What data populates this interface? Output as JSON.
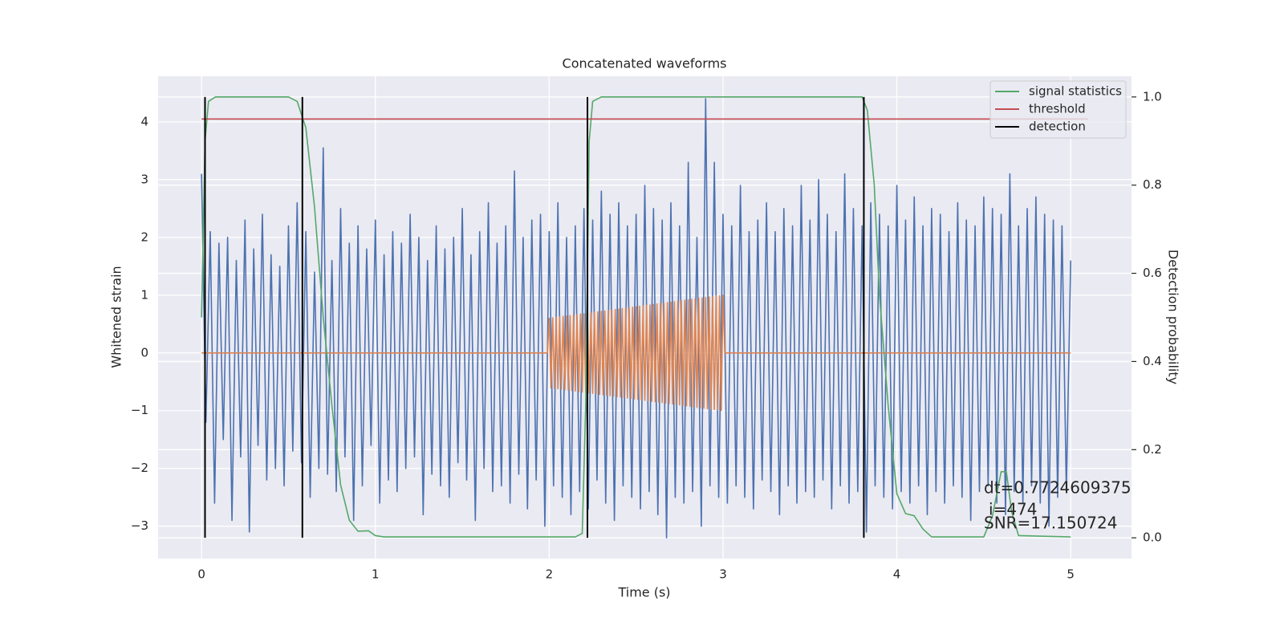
{
  "chart_data": {
    "type": "line",
    "title": "Concatenated waveforms",
    "xlabel": "Time (s)",
    "ylabel": "Whitened strain",
    "y2label": "Detection probability",
    "xlim": [
      -0.25,
      5.35
    ],
    "ylim": [
      -3.56,
      4.79
    ],
    "y2lim": [
      -0.047,
      1.047
    ],
    "xticks": [
      0,
      1,
      2,
      3,
      4,
      5
    ],
    "yticks": [
      {
        "value": -3,
        "label": "−3"
      },
      {
        "value": -2,
        "label": "−2"
      },
      {
        "value": -1,
        "label": "−1"
      },
      0,
      1,
      2,
      3,
      4
    ],
    "y2ticks": [
      {
        "value": 0,
        "label": "0.0"
      },
      {
        "value": 0.2,
        "label": "0.2"
      },
      {
        "value": 0.4,
        "label": "0.4"
      },
      {
        "value": 0.6,
        "label": "0.6"
      },
      {
        "value": 0.8,
        "label": "0.8"
      },
      {
        "value": 1,
        "label": "1.0"
      }
    ],
    "grid": true,
    "legend": "upper right",
    "background": "#eaeaf2",
    "series": [
      {
        "color": "#4c72b0",
        "axis": "y",
        "x": [
          0,
          0.025,
          0.05,
          0.075,
          0.1,
          0.125,
          0.15,
          0.175,
          0.2,
          0.225,
          0.25,
          0.275,
          0.3,
          0.325,
          0.35,
          0.375,
          0.4,
          0.425,
          0.45,
          0.475,
          0.5,
          0.525,
          0.55,
          0.575,
          0.6,
          0.625,
          0.65,
          0.675,
          0.7,
          0.725,
          0.75,
          0.775,
          0.8,
          0.825,
          0.85,
          0.875,
          0.9,
          0.925,
          0.95,
          0.975,
          1,
          1.025,
          1.05,
          1.075,
          1.1,
          1.125,
          1.15,
          1.175,
          1.2,
          1.225,
          1.25,
          1.275,
          1.3,
          1.325,
          1.35,
          1.375,
          1.4,
          1.425,
          1.45,
          1.475,
          1.5,
          1.525,
          1.55,
          1.575,
          1.6,
          1.625,
          1.65,
          1.675,
          1.7,
          1.725,
          1.75,
          1.775,
          1.8,
          1.825,
          1.85,
          1.875,
          1.9,
          1.925,
          1.95,
          1.975,
          2,
          2.025,
          2.05,
          2.075,
          2.1,
          2.125,
          2.15,
          2.175,
          2.2,
          2.225,
          2.25,
          2.275,
          2.3,
          2.325,
          2.35,
          2.375,
          2.4,
          2.425,
          2.45,
          2.475,
          2.5,
          2.525,
          2.55,
          2.575,
          2.6,
          2.625,
          2.65,
          2.675,
          2.7,
          2.725,
          2.75,
          2.775,
          2.8,
          2.825,
          2.85,
          2.875,
          2.9,
          2.925,
          2.95,
          2.975,
          3,
          3.025,
          3.05,
          3.075,
          3.1,
          3.125,
          3.15,
          3.175,
          3.2,
          3.225,
          3.25,
          3.275,
          3.3,
          3.325,
          3.35,
          3.375,
          3.4,
          3.425,
          3.45,
          3.475,
          3.5,
          3.525,
          3.55,
          3.575,
          3.6,
          3.625,
          3.65,
          3.675,
          3.7,
          3.725,
          3.75,
          3.775,
          3.8,
          3.825,
          3.85,
          3.875,
          3.9,
          3.925,
          3.95,
          3.975,
          4,
          4.025,
          4.05,
          4.075,
          4.1,
          4.125,
          4.15,
          4.175,
          4.2,
          4.225,
          4.25,
          4.275,
          4.3,
          4.325,
          4.35,
          4.375,
          4.4,
          4.425,
          4.45,
          4.475,
          4.5,
          4.525,
          4.55,
          4.575,
          4.6,
          4.625,
          4.65,
          4.675,
          4.7,
          4.725,
          4.75,
          4.775,
          4.8,
          4.825,
          4.85,
          4.875,
          4.9,
          4.925,
          4.95,
          4.975,
          5
        ],
        "values": [
          3.1,
          -1.2,
          2.1,
          -2.6,
          1.9,
          -1.5,
          2.0,
          -2.9,
          1.6,
          -1.8,
          2.3,
          -3.1,
          1.8,
          -1.6,
          2.4,
          -2.2,
          1.7,
          -2.0,
          1.5,
          -2.3,
          2.2,
          -1.7,
          2.6,
          -1.9,
          2.1,
          -2.5,
          1.4,
          -2.0,
          3.55,
          -2.1,
          1.6,
          -2.4,
          2.5,
          -1.8,
          1.9,
          -2.9,
          2.2,
          -2.3,
          1.8,
          -1.6,
          2.3,
          -2.6,
          1.7,
          -2.2,
          2.1,
          -2.4,
          1.9,
          -2.0,
          2.4,
          -1.8,
          2.0,
          -2.8,
          1.6,
          -2.1,
          2.2,
          -2.3,
          1.8,
          -2.5,
          2.0,
          -1.9,
          2.5,
          -2.2,
          1.7,
          -2.9,
          2.1,
          -2.0,
          2.6,
          -2.4,
          1.9,
          -2.3,
          2.2,
          -2.6,
          3.15,
          -2.1,
          2.0,
          -2.7,
          2.3,
          -2.2,
          2.4,
          -3.0,
          2.1,
          -2.3,
          2.6,
          -2.5,
          2.0,
          -2.8,
          2.2,
          -2.4,
          2.5,
          -2.7,
          2.3,
          -2.2,
          2.8,
          -2.6,
          2.4,
          -2.9,
          2.6,
          -2.3,
          2.2,
          -2.5,
          2.4,
          -2.7,
          2.9,
          -2.4,
          2.5,
          -2.8,
          2.3,
          -3.2,
          2.6,
          -2.5,
          2.2,
          -2.6,
          3.3,
          -2.4,
          2.0,
          -3.0,
          4.4,
          -2.3,
          3.3,
          -2.5,
          2.4,
          -2.6,
          2.2,
          -2.3,
          2.9,
          -2.5,
          2.1,
          -2.7,
          2.3,
          -2.2,
          2.6,
          -2.4,
          2.1,
          -2.8,
          2.5,
          -2.3,
          2.2,
          -2.6,
          2.9,
          -2.4,
          2.3,
          -2.5,
          3.0,
          -2.2,
          2.4,
          -2.7,
          2.1,
          -2.3,
          3.1,
          -2.6,
          2.5,
          -2.4,
          2.2,
          -3.1,
          2.6,
          -2.3,
          2.4,
          -2.5,
          2.2,
          -2.7,
          2.9,
          -2.4,
          2.3,
          -2.6,
          2.7,
          -2.3,
          2.2,
          -2.8,
          2.5,
          -2.4,
          2.4,
          -2.6,
          2.1,
          -2.3,
          2.6,
          -2.5,
          2.3,
          -2.9,
          2.2,
          -2.4,
          2.7,
          -2.3,
          2.5,
          -2.6,
          2.4,
          -2.8,
          3.1,
          -2.4,
          2.2,
          -2.6,
          2.5,
          -2.3,
          2.7,
          -2.6,
          2.4,
          -3.0,
          2.3,
          -2.5,
          2.2,
          -2.4,
          1.6
        ]
      },
      {
        "color": "#dd8452",
        "axis": "y",
        "x": [
          0,
          1.99,
          2,
          2.01,
          2.02,
          2.03,
          2.04,
          2.05,
          2.06,
          2.07,
          2.08,
          2.09,
          2.1,
          2.11,
          2.12,
          2.13,
          2.14,
          2.15,
          2.16,
          2.17,
          2.18,
          2.19,
          2.2,
          2.21,
          2.22,
          2.23,
          2.24,
          2.25,
          2.26,
          2.27,
          2.28,
          2.29,
          2.3,
          2.31,
          2.32,
          2.33,
          2.34,
          2.35,
          2.36,
          2.37,
          2.38,
          2.39,
          2.4,
          2.41,
          2.42,
          2.43,
          2.44,
          2.45,
          2.46,
          2.47,
          2.48,
          2.49,
          2.5,
          2.51,
          2.52,
          2.53,
          2.54,
          2.55,
          2.56,
          2.57,
          2.58,
          2.59,
          2.6,
          2.61,
          2.62,
          2.63,
          2.64,
          2.65,
          2.66,
          2.67,
          2.68,
          2.69,
          2.7,
          2.71,
          2.72,
          2.73,
          2.74,
          2.75,
          2.76,
          2.77,
          2.78,
          2.79,
          2.8,
          2.81,
          2.82,
          2.83,
          2.84,
          2.85,
          2.86,
          2.87,
          2.88,
          2.89,
          2.9,
          2.91,
          2.92,
          2.93,
          2.94,
          2.95,
          2.96,
          2.97,
          2.98,
          2.99,
          3,
          3.01,
          5
        ],
        "values": [
          0,
          0,
          0.6,
          -0.604,
          0.608,
          -0.612,
          0.616,
          -0.62,
          0.624,
          -0.628,
          0.632,
          -0.636,
          0.64,
          -0.644,
          0.648,
          -0.652,
          0.656,
          -0.66,
          0.664,
          -0.668,
          0.672,
          -0.676,
          0.68,
          -0.684,
          0.688,
          -0.692,
          0.696,
          -0.7,
          0.704,
          -0.708,
          0.712,
          -0.716,
          0.72,
          -0.724,
          0.728,
          -0.732,
          0.736,
          -0.74,
          0.744,
          -0.748,
          0.752,
          -0.756,
          0.76,
          -0.764,
          0.768,
          -0.772,
          0.776,
          -0.78,
          0.784,
          -0.788,
          0.792,
          -0.796,
          0.8,
          -0.804,
          0.808,
          -0.812,
          0.816,
          -0.82,
          0.824,
          -0.828,
          0.832,
          -0.836,
          0.84,
          -0.844,
          0.848,
          -0.852,
          0.856,
          -0.86,
          0.864,
          -0.868,
          0.872,
          -0.876,
          0.88,
          -0.884,
          0.888,
          -0.892,
          0.896,
          -0.9,
          0.904,
          -0.908,
          0.912,
          -0.916,
          0.92,
          -0.924,
          0.928,
          -0.932,
          0.936,
          -0.94,
          0.944,
          -0.948,
          0.952,
          -0.956,
          0.96,
          -0.964,
          0.968,
          -0.972,
          0.976,
          -0.98,
          0.984,
          -0.988,
          0.992,
          -0.996,
          1.0,
          0,
          0
        ]
      },
      {
        "name": "signal statistics",
        "color": "#55a868",
        "axis": "y2",
        "x": [
          0,
          0.02,
          0.04,
          0.08,
          0.5,
          0.55,
          0.6,
          0.65,
          0.7,
          0.75,
          0.8,
          0.85,
          0.9,
          0.96,
          1.0,
          1.05,
          2.15,
          2.19,
          2.21,
          2.23,
          2.25,
          2.3,
          3.8,
          3.83,
          3.87,
          3.9,
          3.95,
          4.0,
          4.05,
          4.1,
          4.15,
          4.2,
          4.5,
          4.55,
          4.6,
          4.63,
          4.66,
          4.7,
          5.0
        ],
        "values": [
          0.5,
          0.9,
          0.99,
          1.0,
          1.0,
          0.99,
          0.93,
          0.75,
          0.5,
          0.3,
          0.12,
          0.04,
          0.015,
          0.016,
          0.005,
          0.002,
          0.002,
          0.01,
          0.3,
          0.9,
          0.99,
          1.0,
          1.0,
          0.97,
          0.8,
          0.55,
          0.3,
          0.1,
          0.055,
          0.05,
          0.02,
          0.002,
          0.002,
          0.05,
          0.15,
          0.15,
          0.06,
          0.005,
          0.002
        ]
      },
      {
        "name": "threshold",
        "color": "#c44e52",
        "axis": "y2",
        "x": [
          0,
          5.1
        ],
        "values": [
          0.95,
          0.95
        ]
      },
      {
        "name": "detection",
        "color": "#000000",
        "axis": "y2",
        "type": "vline",
        "x": [
          0.02,
          0.58,
          2.22,
          3.81
        ],
        "ymin": 0,
        "ymax": 1
      }
    ],
    "annotations": [
      "dt=0.7724609375",
      "i=474",
      "SNR=17.150724"
    ]
  }
}
